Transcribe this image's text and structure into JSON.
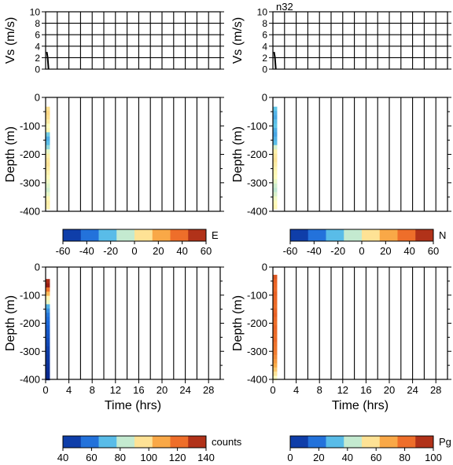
{
  "figure_label": "n32",
  "chart_data": [
    {
      "id": "vs-left",
      "type": "line",
      "ylabel": "Vs (m/s)",
      "xlabel": "",
      "xlim": [
        0,
        30
      ],
      "ylim": [
        0,
        10
      ],
      "yticks": [
        "0",
        "2",
        "4",
        "6",
        "8",
        "10"
      ],
      "grid": true,
      "series": [
        {
          "x": [
            0.2,
            0.35,
            0.5
          ],
          "y": [
            3,
            2,
            0
          ]
        }
      ]
    },
    {
      "id": "vs-right",
      "type": "line",
      "ylabel": "Vs (m/s)",
      "xlabel": "",
      "xlim": [
        0,
        30
      ],
      "ylim": [
        0,
        10
      ],
      "yticks": [
        "0",
        "2",
        "4",
        "6",
        "8",
        "10"
      ],
      "grid": true,
      "series": [
        {
          "x": [
            0.2,
            0.35,
            0.5
          ],
          "y": [
            3,
            2,
            0
          ]
        }
      ]
    },
    {
      "id": "depth-E",
      "type": "heatmap",
      "ylabel": "Depth (m)",
      "xlabel": "",
      "xlim": [
        0,
        30
      ],
      "ylim": [
        -400,
        0
      ],
      "yticks": [
        "0",
        "-100",
        "-200",
        "-300",
        "-400"
      ],
      "grid": true,
      "colorbar": {
        "label": "E",
        "ticks": [
          "-60",
          "-40",
          "-20",
          "0",
          "20",
          "40",
          "60"
        ],
        "range": [
          -60,
          60
        ],
        "colormap": "diverging"
      },
      "columns": [
        {
          "x": 0.4,
          "cells": [
            {
              "depth": -40,
              "value": 8
            },
            {
              "depth": -55,
              "value": 10
            },
            {
              "depth": -70,
              "value": 8
            },
            {
              "depth": -85,
              "value": 5
            },
            {
              "depth": -100,
              "value": 0
            },
            {
              "depth": -115,
              "value": 2
            },
            {
              "depth": -130,
              "value": -18
            },
            {
              "depth": -145,
              "value": -25
            },
            {
              "depth": -160,
              "value": -22
            },
            {
              "depth": -175,
              "value": -14
            },
            {
              "depth": -190,
              "value": -3
            },
            {
              "depth": -205,
              "value": 4
            },
            {
              "depth": -220,
              "value": 6
            },
            {
              "depth": -235,
              "value": 7
            },
            {
              "depth": -250,
              "value": 5
            },
            {
              "depth": -265,
              "value": 3
            },
            {
              "depth": -280,
              "value": 1
            },
            {
              "depth": -295,
              "value": -2
            },
            {
              "depth": -310,
              "value": -4
            },
            {
              "depth": -325,
              "value": -6
            },
            {
              "depth": -340,
              "value": -3
            },
            {
              "depth": -355,
              "value": 2
            },
            {
              "depth": -370,
              "value": 4
            },
            {
              "depth": -385,
              "value": 3
            }
          ]
        }
      ]
    },
    {
      "id": "depth-N",
      "type": "heatmap",
      "ylabel": "Depth (m)",
      "xlabel": "",
      "xlim": [
        0,
        30
      ],
      "ylim": [
        -400,
        0
      ],
      "yticks": [
        "0",
        "-100",
        "-200",
        "-300",
        "-400"
      ],
      "grid": true,
      "colorbar": {
        "label": "N",
        "ticks": [
          "-60",
          "-40",
          "-20",
          "0",
          "20",
          "40",
          "60"
        ],
        "range": [
          -60,
          60
        ],
        "colormap": "diverging"
      },
      "columns": [
        {
          "x": 0.4,
          "cells": [
            {
              "depth": -40,
              "value": -20
            },
            {
              "depth": -55,
              "value": -24
            },
            {
              "depth": -70,
              "value": -26
            },
            {
              "depth": -85,
              "value": -22
            },
            {
              "depth": -100,
              "value": -20
            },
            {
              "depth": -115,
              "value": -25
            },
            {
              "depth": -130,
              "value": -27
            },
            {
              "depth": -145,
              "value": -24
            },
            {
              "depth": -160,
              "value": -22
            },
            {
              "depth": -175,
              "value": -5
            },
            {
              "depth": -190,
              "value": 4
            },
            {
              "depth": -205,
              "value": 6
            },
            {
              "depth": -220,
              "value": 7
            },
            {
              "depth": -235,
              "value": 5
            },
            {
              "depth": -250,
              "value": 3
            },
            {
              "depth": -265,
              "value": 2
            },
            {
              "depth": -280,
              "value": 1
            },
            {
              "depth": -295,
              "value": -3
            },
            {
              "depth": -310,
              "value": -6
            },
            {
              "depth": -325,
              "value": -8
            },
            {
              "depth": -340,
              "value": -5
            },
            {
              "depth": -355,
              "value": -2
            },
            {
              "depth": -370,
              "value": 1
            },
            {
              "depth": -385,
              "value": 2
            }
          ]
        }
      ]
    },
    {
      "id": "depth-counts",
      "type": "heatmap",
      "ylabel": "Depth (m)",
      "xlabel": "Time (hrs)",
      "xlim": [
        0,
        30
      ],
      "xticks": [
        "0",
        "4",
        "8",
        "12",
        "16",
        "20",
        "24",
        "28"
      ],
      "ylim": [
        -400,
        0
      ],
      "yticks": [
        "0",
        "-100",
        "-200",
        "-300",
        "-400"
      ],
      "grid": true,
      "colorbar": {
        "label": "counts",
        "ticks": [
          "40",
          "60",
          "80",
          "100",
          "120",
          "140"
        ],
        "range": [
          40,
          140
        ],
        "colormap": "diverging"
      },
      "columns": [
        {
          "x": 0.4,
          "cells": [
            {
              "depth": -50,
              "value": 135
            },
            {
              "depth": -65,
              "value": 138
            },
            {
              "depth": -80,
              "value": 120
            },
            {
              "depth": -95,
              "value": 105
            },
            {
              "depth": -110,
              "value": 92
            },
            {
              "depth": -125,
              "value": 88
            },
            {
              "depth": -140,
              "value": 70
            },
            {
              "depth": -155,
              "value": 64
            },
            {
              "depth": -170,
              "value": 60
            },
            {
              "depth": -185,
              "value": 58
            },
            {
              "depth": -200,
              "value": 57
            },
            {
              "depth": -215,
              "value": 55
            },
            {
              "depth": -230,
              "value": 53
            },
            {
              "depth": -245,
              "value": 52
            },
            {
              "depth": -260,
              "value": 50
            },
            {
              "depth": -275,
              "value": 49
            },
            {
              "depth": -290,
              "value": 47
            },
            {
              "depth": -305,
              "value": 46
            },
            {
              "depth": -320,
              "value": 45
            },
            {
              "depth": -335,
              "value": 44
            },
            {
              "depth": -350,
              "value": 43
            },
            {
              "depth": -365,
              "value": 42
            },
            {
              "depth": -380,
              "value": 41
            },
            {
              "depth": -395,
              "value": 41
            }
          ]
        }
      ]
    },
    {
      "id": "depth-Pg",
      "type": "heatmap",
      "ylabel": "Depth (m)",
      "xlabel": "Time (hrs)",
      "xlim": [
        0,
        30
      ],
      "xticks": [
        "0",
        "4",
        "8",
        "12",
        "16",
        "20",
        "24",
        "28"
      ],
      "ylim": [
        -400,
        0
      ],
      "yticks": [
        "0",
        "-100",
        "-200",
        "-300",
        "-400"
      ],
      "grid": true,
      "colorbar": {
        "label": "Pg",
        "ticks": [
          "0",
          "20",
          "40",
          "60",
          "80",
          "100"
        ],
        "range": [
          0,
          100
        ],
        "colormap": "diverging"
      },
      "columns": [
        {
          "x": 0.4,
          "cells": [
            {
              "depth": -35,
              "value": 86
            },
            {
              "depth": -50,
              "value": 84
            },
            {
              "depth": -65,
              "value": 83
            },
            {
              "depth": -80,
              "value": 82
            },
            {
              "depth": -95,
              "value": 84
            },
            {
              "depth": -110,
              "value": 83
            },
            {
              "depth": -125,
              "value": 82
            },
            {
              "depth": -140,
              "value": 81
            },
            {
              "depth": -155,
              "value": 83
            },
            {
              "depth": -170,
              "value": 84
            },
            {
              "depth": -185,
              "value": 82
            },
            {
              "depth": -200,
              "value": 81
            },
            {
              "depth": -215,
              "value": 83
            },
            {
              "depth": -230,
              "value": 82
            },
            {
              "depth": -245,
              "value": 81
            },
            {
              "depth": -260,
              "value": 82
            },
            {
              "depth": -275,
              "value": 80
            },
            {
              "depth": -290,
              "value": 79
            },
            {
              "depth": -305,
              "value": 78
            },
            {
              "depth": -320,
              "value": 75
            },
            {
              "depth": -335,
              "value": 72
            },
            {
              "depth": -350,
              "value": 68
            },
            {
              "depth": -365,
              "value": 62
            },
            {
              "depth": -380,
              "value": 56
            },
            {
              "depth": -395,
              "value": 50
            }
          ]
        }
      ]
    }
  ],
  "colormap_stops": [
    "#08268c",
    "#1a66d9",
    "#62c8ea",
    "#ffffc0",
    "#fbb24c",
    "#ec6425",
    "#8e1412"
  ]
}
